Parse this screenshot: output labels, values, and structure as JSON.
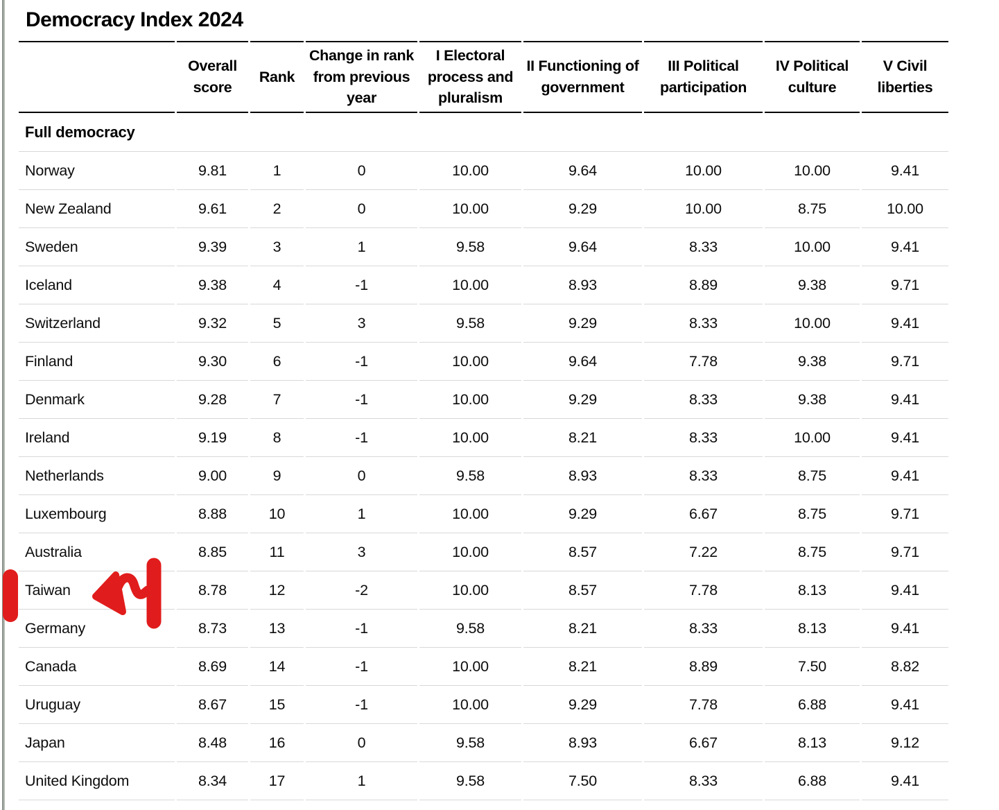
{
  "page": {
    "background": "#ffffff",
    "text_color": "#0d0d0d",
    "separator_color": "#d8d8d8",
    "header_line_color": "#000000"
  },
  "chart_data": {
    "type": "table",
    "title": "Democracy Index 2024",
    "section_label": "Full democracy",
    "columns": [
      "",
      "Overall score",
      "Rank",
      "Change in rank from previous year",
      "I Electoral process and pluralism",
      "II Functioning of government",
      "III Political participation",
      "IV Political culture",
      "V Civil liberties"
    ],
    "rows": [
      [
        "Norway",
        "9.81",
        "1",
        "0",
        "10.00",
        "9.64",
        "10.00",
        "10.00",
        "9.41"
      ],
      [
        "New Zealand",
        "9.61",
        "2",
        "0",
        "10.00",
        "9.29",
        "10.00",
        "8.75",
        "10.00"
      ],
      [
        "Sweden",
        "9.39",
        "3",
        "1",
        "9.58",
        "9.64",
        "8.33",
        "10.00",
        "9.41"
      ],
      [
        "Iceland",
        "9.38",
        "4",
        "-1",
        "10.00",
        "8.93",
        "8.89",
        "9.38",
        "9.71"
      ],
      [
        "Switzerland",
        "9.32",
        "5",
        "3",
        "9.58",
        "9.29",
        "8.33",
        "10.00",
        "9.41"
      ],
      [
        "Finland",
        "9.30",
        "6",
        "-1",
        "10.00",
        "9.64",
        "7.78",
        "9.38",
        "9.71"
      ],
      [
        "Denmark",
        "9.28",
        "7",
        "-1",
        "10.00",
        "9.29",
        "8.33",
        "9.38",
        "9.41"
      ],
      [
        "Ireland",
        "9.19",
        "8",
        "-1",
        "10.00",
        "8.21",
        "8.33",
        "10.00",
        "9.41"
      ],
      [
        "Netherlands",
        "9.00",
        "9",
        "0",
        "9.58",
        "8.93",
        "8.33",
        "8.75",
        "9.41"
      ],
      [
        "Luxembourg",
        "8.88",
        "10",
        "1",
        "10.00",
        "9.29",
        "6.67",
        "8.75",
        "9.71"
      ],
      [
        "Australia",
        "8.85",
        "11",
        "3",
        "10.00",
        "8.57",
        "7.22",
        "8.75",
        "9.71"
      ],
      [
        "Taiwan",
        "8.78",
        "12",
        "-2",
        "10.00",
        "8.57",
        "7.78",
        "8.13",
        "9.41"
      ],
      [
        "Germany",
        "8.73",
        "13",
        "-1",
        "9.58",
        "8.21",
        "8.33",
        "8.13",
        "9.41"
      ],
      [
        "Canada",
        "8.69",
        "14",
        "-1",
        "10.00",
        "8.21",
        "8.89",
        "7.50",
        "8.82"
      ],
      [
        "Uruguay",
        "8.67",
        "15",
        "-1",
        "10.00",
        "9.29",
        "7.78",
        "6.88",
        "9.41"
      ],
      [
        "Japan",
        "8.48",
        "16",
        "0",
        "9.58",
        "8.93",
        "6.67",
        "8.13",
        "9.12"
      ],
      [
        "United Kingdom",
        "8.34",
        "17",
        "1",
        "9.58",
        "7.50",
        "8.33",
        "6.88",
        "9.41"
      ]
    ]
  },
  "annotation": {
    "color": "#e11c1c",
    "description": "Hand-drawn red marker: vertical tick in left margin and left-pointing arrow highlighting the Taiwan row",
    "target_row": "Taiwan"
  }
}
